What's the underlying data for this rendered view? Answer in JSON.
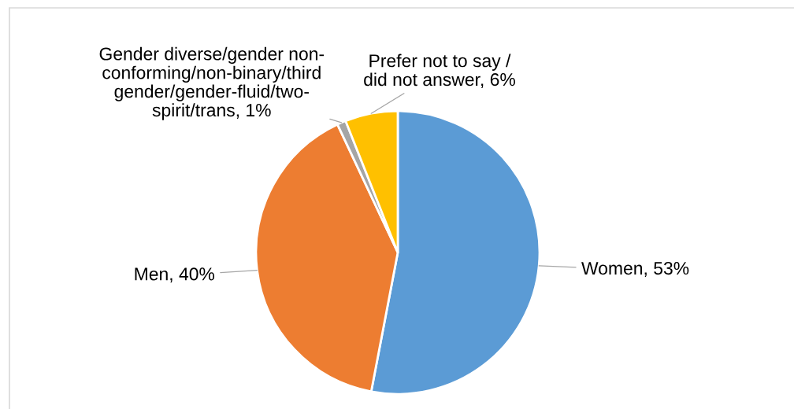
{
  "chart_data": {
    "type": "pie",
    "categories": [
      "Women",
      "Men",
      "Gender diverse/gender non-\nconforming/non-binary/third\ngender/gender-fluid/two-\nspirit/trans",
      "Prefer not to say /\ndid not answer"
    ],
    "values": [
      53,
      40,
      1,
      6
    ],
    "value_labels": [
      "53%",
      "40%",
      "1%",
      "6%"
    ],
    "colors": [
      "#5b9bd5",
      "#ed7d31",
      "#a5a5a5",
      "#ffc000"
    ]
  }
}
